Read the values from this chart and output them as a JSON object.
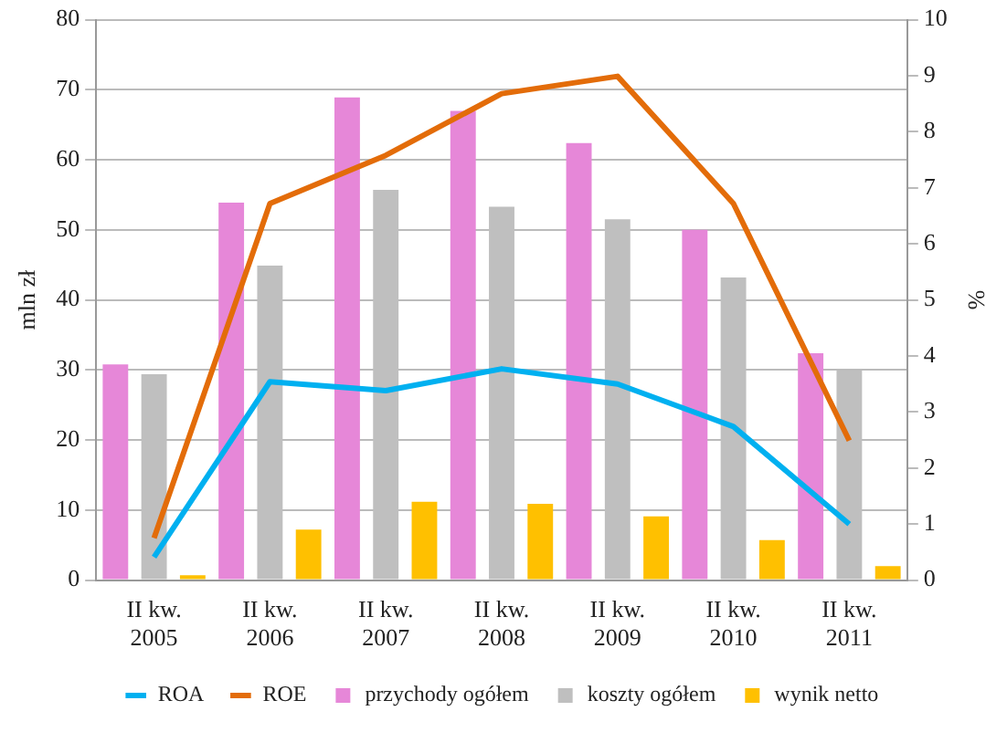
{
  "chart_data": {
    "type": "bar",
    "ylabel": "mln zł",
    "y2label": "%",
    "categories": [
      "II kw.\n2005",
      "II kw.\n2006",
      "II kw.\n2007",
      "II kw.\n2008",
      "II kw.\n2009",
      "II kw.\n2010",
      "II kw.\n2011"
    ],
    "series": [
      {
        "name": "przychody ogółem",
        "color": "#e687d8",
        "values": [
          30.8,
          53.9,
          68.9,
          67.0,
          62.4,
          50.0,
          32.4
        ]
      },
      {
        "name": "koszty ogółem",
        "color": "#bfbfbf",
        "values": [
          29.4,
          44.9,
          55.7,
          53.3,
          51.5,
          43.2,
          29.9
        ]
      },
      {
        "name": "wynik netto",
        "color": "#ffc000",
        "values": [
          0.7,
          7.2,
          11.2,
          10.9,
          9.1,
          5.7,
          2.0
        ]
      },
      {
        "name": "ROA",
        "type": "line",
        "axis": "y2",
        "color": "#00b0f0",
        "values": [
          0.41,
          3.54,
          3.38,
          3.77,
          3.5,
          2.74,
          1.0
        ]
      },
      {
        "name": "ROE",
        "type": "line",
        "axis": "y2",
        "color": "#e36c09",
        "values": [
          0.75,
          6.72,
          7.58,
          8.68,
          8.99,
          6.72,
          2.49
        ]
      }
    ],
    "ylim": [
      0,
      80
    ],
    "yticks": [
      0,
      10,
      20,
      30,
      40,
      50,
      60,
      70,
      80
    ],
    "y2lim": [
      0,
      10
    ],
    "y2ticks": [
      0,
      1,
      2,
      3,
      4,
      5,
      6,
      7,
      8,
      9,
      10
    ],
    "grid": "y",
    "legend": "bottom",
    "marker": "none",
    "line_style": "solid"
  }
}
